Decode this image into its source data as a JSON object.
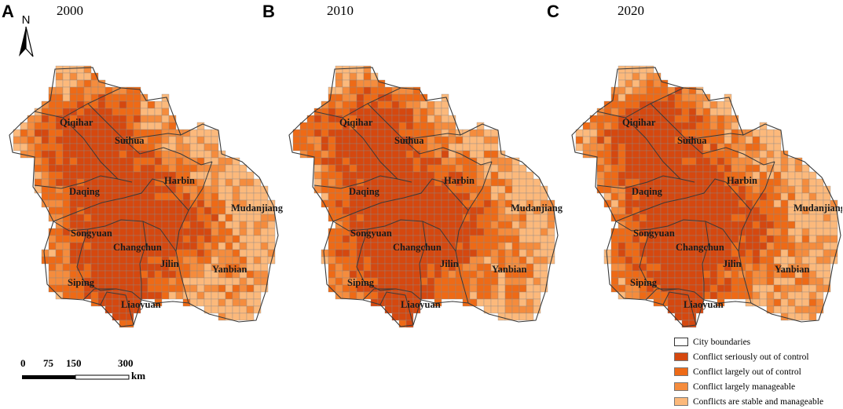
{
  "panels": [
    {
      "letter": "A",
      "year": "2000",
      "seed": 11,
      "dark_bias": 0.0
    },
    {
      "letter": "B",
      "year": "2010",
      "seed": 23,
      "dark_bias": 0.05
    },
    {
      "letter": "C",
      "year": "2020",
      "seed": 37,
      "dark_bias": 0.02
    }
  ],
  "north_label": "N",
  "cities": [
    "Qiqihar",
    "Suihua",
    "Daqing",
    "Harbin",
    "Mudanjiang",
    "Songyuan",
    "Changchun",
    "Jilin",
    "Yanbian",
    "Siping",
    "Liaoyuan"
  ],
  "scale": {
    "ticks": [
      "0",
      "75",
      "150",
      "300"
    ],
    "unit": "km"
  },
  "legend": [
    {
      "label": "City boundaries",
      "color": "#ffffff",
      "outline": true
    },
    {
      "label": "Conflict seriously out of control",
      "color": "#d5480f"
    },
    {
      "label": "Conflict largely out of control",
      "color": "#ee6a16"
    },
    {
      "label": "Conflict largely manageable",
      "color": "#f58c3d"
    },
    {
      "label": "Conflicts are stable and manageable",
      "color": "#fcb97b"
    }
  ]
}
